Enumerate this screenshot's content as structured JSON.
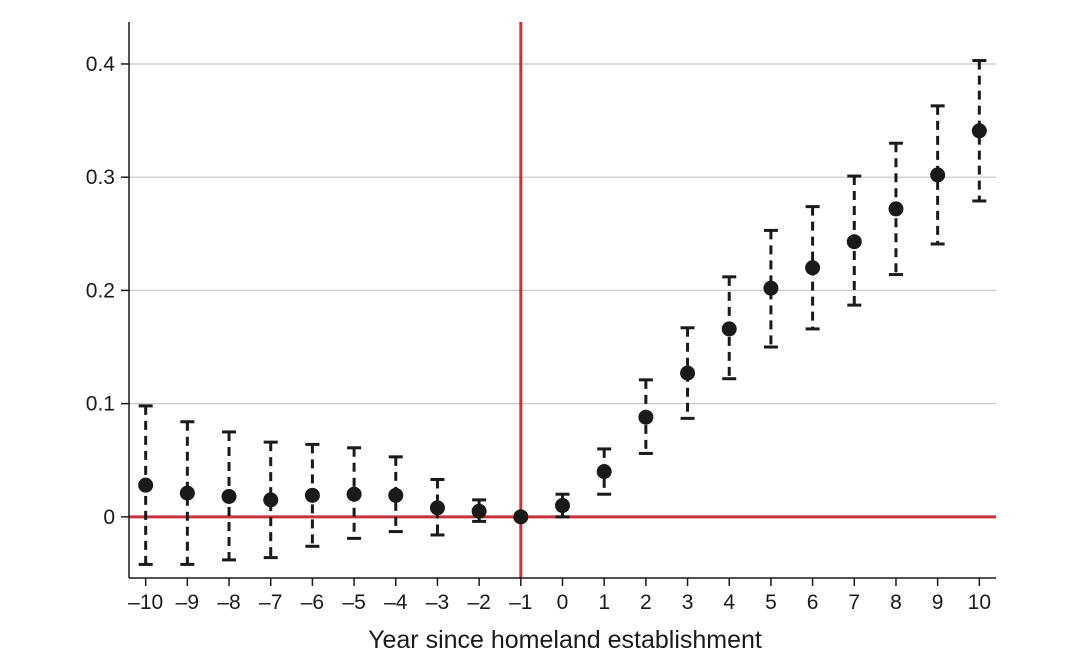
{
  "chart_data": {
    "type": "scatter",
    "title": "",
    "xlabel": "Year since homeland establishment",
    "ylabel": "",
    "x": [
      -10,
      -9,
      -8,
      -7,
      -6,
      -5,
      -4,
      -3,
      -2,
      -1,
      0,
      1,
      2,
      3,
      4,
      5,
      6,
      7,
      8,
      9,
      10
    ],
    "x_tick_labels": [
      "–10",
      "–9",
      "–8",
      "–7",
      "–6",
      "–5",
      "–4",
      "–3",
      "–2",
      "–1",
      "0",
      "1",
      "2",
      "3",
      "4",
      "5",
      "6",
      "7",
      "8",
      "9",
      "10"
    ],
    "y_ticks": [
      0,
      0.1,
      0.2,
      0.3,
      0.4
    ],
    "y_tick_labels": [
      "0",
      "0.1",
      "0.2",
      "0.3",
      "0.4"
    ],
    "series": [
      {
        "values": [
          0.028,
          0.021,
          0.018,
          0.015,
          0.019,
          0.02,
          0.019,
          0.008,
          0.005,
          0.0,
          0.01,
          0.04,
          0.088,
          0.127,
          0.166,
          0.202,
          0.22,
          0.243,
          0.272,
          0.302,
          0.341
        ],
        "ci_low": [
          -0.042,
          -0.042,
          -0.038,
          -0.036,
          -0.026,
          -0.019,
          -0.013,
          -0.016,
          -0.004,
          0.0,
          0.0,
          0.02,
          0.056,
          0.087,
          0.122,
          0.15,
          0.166,
          0.187,
          0.214,
          0.241,
          0.279
        ],
        "ci_high": [
          0.098,
          0.084,
          0.075,
          0.066,
          0.064,
          0.061,
          0.053,
          0.033,
          0.015,
          0.0,
          0.02,
          0.06,
          0.121,
          0.167,
          0.212,
          0.253,
          0.274,
          0.301,
          0.33,
          0.363,
          0.403
        ]
      }
    ],
    "xlim": [
      -10.4,
      10.4
    ],
    "ylim": [
      -0.054,
      0.43
    ],
    "reference_lines": {
      "vertical_x": -1,
      "horizontal_y": 0
    },
    "grid": "horizontal",
    "colors": {
      "reference_line": "#c8323a",
      "marker": "#1a1a1a",
      "grid": "#c8c8c8",
      "error_bar": "#1a1a1a"
    }
  }
}
